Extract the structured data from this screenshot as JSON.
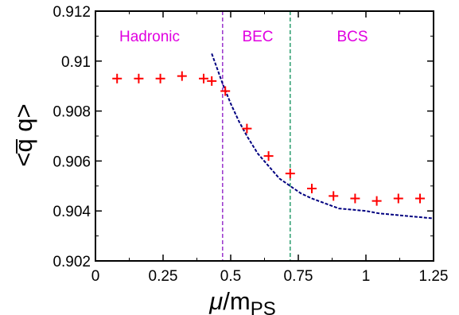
{
  "chart_data": {
    "type": "scatter",
    "xlabel_main": "μ",
    "xlabel_rest": "/m",
    "xlabel_sub": "PS",
    "ylabel": "<q̅ q>",
    "xlim": [
      0,
      1.25
    ],
    "ylim": [
      0.902,
      0.912
    ],
    "xticks": [
      0,
      0.25,
      0.5,
      0.75,
      1,
      1.25
    ],
    "xtick_labels": [
      "0",
      "0.25",
      "0.5",
      "0.75",
      "1",
      "1.25"
    ],
    "yticks": [
      0.902,
      0.904,
      0.906,
      0.908,
      0.91,
      0.912
    ],
    "ytick_labels": [
      "0.902",
      "0.904",
      "0.906",
      "0.908",
      "0.91",
      "0.912"
    ],
    "grid": false,
    "regions": [
      {
        "label": "Hadronic",
        "x_center": 0.2,
        "color": "#e000e0"
      },
      {
        "label": "BEC",
        "x_center": 0.6,
        "color": "#e000e0"
      },
      {
        "label": "BCS",
        "x_center": 0.95,
        "color": "#e000e0"
      }
    ],
    "vlines": [
      {
        "x": 0.47,
        "color": "#9933cc",
        "style": "dashed"
      },
      {
        "x": 0.72,
        "color": "#2a9d6e",
        "style": "dashed"
      }
    ],
    "series": [
      {
        "marker": "plus",
        "color": "#ff0000",
        "x": [
          0.08,
          0.16,
          0.24,
          0.32,
          0.4,
          0.43,
          0.48,
          0.56,
          0.64,
          0.72,
          0.8,
          0.88,
          0.96,
          1.04,
          1.12,
          1.2
        ],
        "y": [
          0.9093,
          0.9093,
          0.9093,
          0.9094,
          0.9093,
          0.9092,
          0.9088,
          0.9073,
          0.9062,
          0.9055,
          0.9049,
          0.9046,
          0.9045,
          0.9044,
          0.9045,
          0.9045
        ]
      }
    ],
    "fit_curve": {
      "color": "#000080",
      "style": "dashed",
      "x": [
        0.43,
        0.45,
        0.47,
        0.5,
        0.53,
        0.56,
        0.6,
        0.64,
        0.68,
        0.72,
        0.76,
        0.8,
        0.85,
        0.9,
        0.95,
        1.0,
        1.05,
        1.1,
        1.15,
        1.2,
        1.25
      ],
      "y": [
        0.9103,
        0.9097,
        0.9091,
        0.9083,
        0.9076,
        0.907,
        0.9063,
        0.9058,
        0.9053,
        0.905,
        0.9047,
        0.9045,
        0.9043,
        0.9041,
        0.90405,
        0.904,
        0.9039,
        0.90385,
        0.9038,
        0.90375,
        0.9037
      ]
    }
  }
}
